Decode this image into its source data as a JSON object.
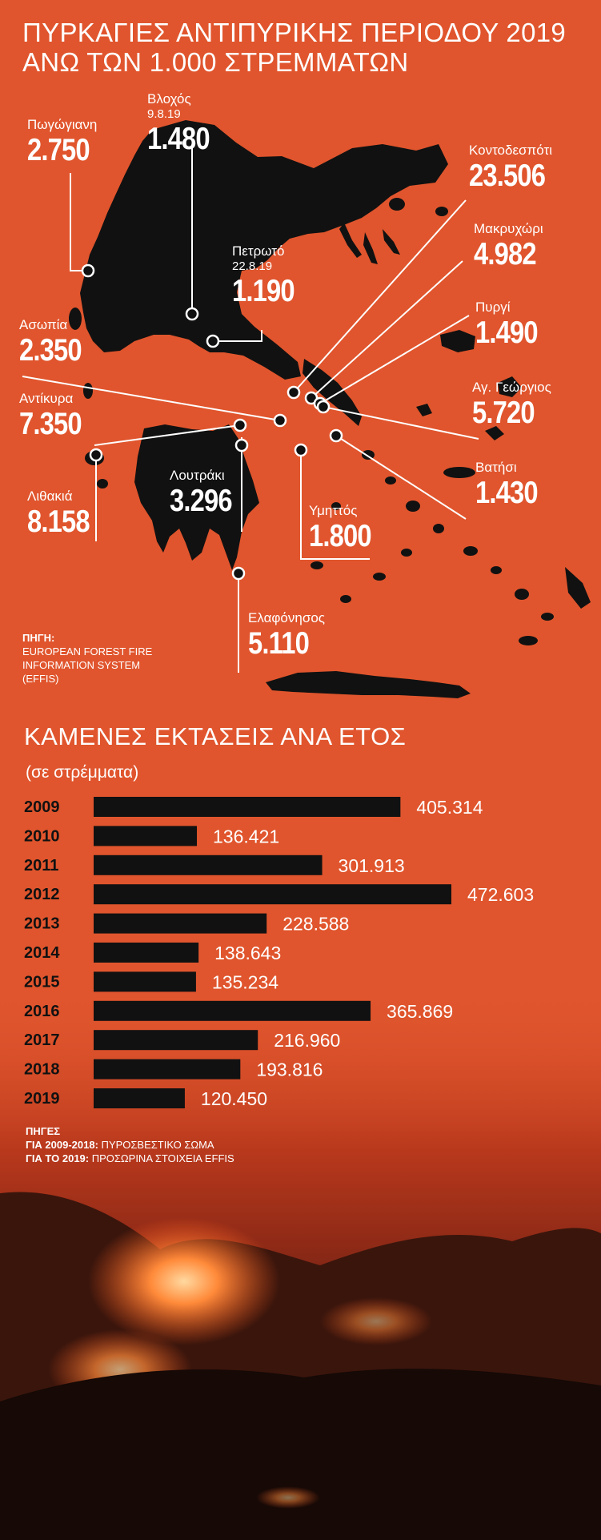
{
  "title_line1": "ΠΥΡΚΑΓΙΕΣ ΑΝΤΙΠΥΡΙΚΗΣ ΠΕΡΙΟΔΟΥ 2019",
  "title_line2": "ΑΝΩ ΤΩΝ 1.000 ΣΤΡΕΜΜΑΤΩΝ",
  "colors": {
    "background": "#e0552d",
    "map_land": "#111111",
    "bars": "#111111",
    "text": "#ffffff"
  },
  "map": {
    "fires": [
      {
        "name": "Πωγώγιανη",
        "date": "",
        "value": "2.750"
      },
      {
        "name": "Βλοχός",
        "date": "9.8.19",
        "value": "1.480"
      },
      {
        "name": "Κοντοδεσπότι",
        "date": "",
        "value": "23.506"
      },
      {
        "name": "Μακρυχώρι",
        "date": "",
        "value": "4.982"
      },
      {
        "name": "Πετρωτό",
        "date": "22.8.19",
        "value": "1.190"
      },
      {
        "name": "Ασωπία",
        "date": "",
        "value": "2.350"
      },
      {
        "name": "Πυργί",
        "date": "",
        "value": "1.490"
      },
      {
        "name": "Αντίκυρα",
        "date": "",
        "value": "7.350"
      },
      {
        "name": "Αγ. Γεώργιος",
        "date": "",
        "value": "5.720"
      },
      {
        "name": "Βατήσι",
        "date": "",
        "value": "1.430"
      },
      {
        "name": "Λιθακιά",
        "date": "",
        "value": "8.158"
      },
      {
        "name": "Λουτράκι",
        "date": "",
        "value": "3.296"
      },
      {
        "name": "Υμηττός",
        "date": "",
        "value": "1.800"
      },
      {
        "name": "Ελαφόνησος",
        "date": "",
        "value": "5.110"
      }
    ],
    "source_label": "ΠΗΓΗ:",
    "source_line1": "EUROPEAN FOREST FIRE",
    "source_line2": "INFORMATION SYSTEM",
    "source_line3": "(EFFIS)"
  },
  "chart_title": "ΚΑΜΕΝΕΣ ΕΚΤΑΣΕΙΣ ΑΝΑ ΕΤΟΣ",
  "chart_subtitle": "(σε στρέμματα)",
  "chart_data": {
    "type": "bar",
    "orientation": "horizontal",
    "title": "ΚΑΜΕΝΕΣ ΕΚΤΑΣΕΙΣ ΑΝΑ ΕΤΟΣ",
    "subtitle": "(σε στρέμματα)",
    "categories": [
      "2009",
      "2010",
      "2011",
      "2012",
      "2013",
      "2014",
      "2015",
      "2016",
      "2017",
      "2018",
      "2019"
    ],
    "values": [
      405314,
      136421,
      301913,
      472603,
      228588,
      138643,
      135234,
      365869,
      216960,
      193816,
      120450
    ],
    "labels": [
      "405.314",
      "136.421",
      "301.913",
      "472.603",
      "228.588",
      "138.643",
      "135.234",
      "365.869",
      "216.960",
      "193.816",
      "120.450"
    ],
    "xlim": [
      0,
      472603
    ],
    "grid": false,
    "legend": "none"
  },
  "chart_source": {
    "label": "ΠΗΓΕΣ",
    "line1_bold": "ΓΙΑ 2009-2018:",
    "line1_text": " ΠΥΡΟΣΒΕΣΤΙΚΟ ΣΩΜΑ",
    "line2_bold": "ΓΙΑ ΤΟ 2019:",
    "line2_text": " ΠΡΟΣΩΡΙΝΑ ΣΤΟΙΧΕΙΑ EFFIS"
  }
}
